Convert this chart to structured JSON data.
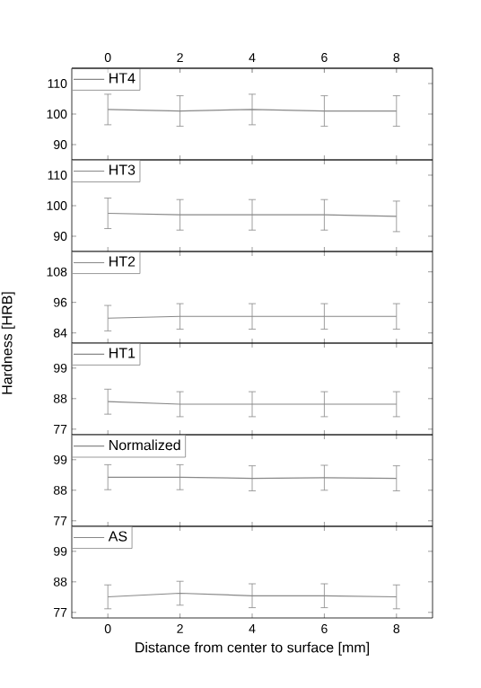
{
  "chart_data": [
    {
      "type": "line",
      "x": [
        0,
        2,
        4,
        6,
        8
      ],
      "xlim": [
        -1,
        9
      ],
      "xticks": [
        0,
        2,
        4,
        6,
        8
      ],
      "x2lim": [
        -1,
        9
      ],
      "x2ticks": [
        0,
        2,
        4,
        6,
        8
      ],
      "ylim": [
        85,
        115
      ],
      "yticks": [
        90,
        100,
        110
      ],
      "tick_labels": "y",
      "legend": "top left",
      "series": [
        {
          "name": "HT4",
          "color": "#888888",
          "values": [
            101.5,
            101,
            101.5,
            101,
            101
          ],
          "errors": [
            5,
            5,
            5,
            5,
            5
          ]
        }
      ]
    },
    {
      "type": "line",
      "x": [
        0,
        2,
        4,
        6,
        8
      ],
      "xlim": [
        -1,
        9
      ],
      "xticks": [
        0,
        2,
        4,
        6,
        8
      ],
      "ylim": [
        85,
        115
      ],
      "yticks": [
        90,
        100,
        110
      ],
      "tick_labels": "y",
      "legend": "top left",
      "series": [
        {
          "name": "HT3",
          "color": "#888888",
          "values": [
            97.5,
            97,
            97,
            97,
            96.5
          ],
          "errors": [
            5,
            5,
            5,
            5,
            5
          ]
        }
      ]
    },
    {
      "type": "line",
      "x": [
        0,
        2,
        4,
        6,
        8
      ],
      "xlim": [
        -1,
        9
      ],
      "xticks": [
        0,
        2,
        4,
        6,
        8
      ],
      "ylim": [
        80,
        116
      ],
      "yticks": [
        84,
        96,
        108
      ],
      "tick_labels": "y",
      "legend": "top left",
      "ylabel": "Hardness [HRB]",
      "series": [
        {
          "name": "HT2",
          "color": "#888888",
          "values": [
            89.8,
            90.5,
            90.5,
            90.5,
            90.5
          ],
          "errors": [
            5,
            5,
            5,
            5,
            5
          ]
        }
      ]
    },
    {
      "type": "line",
      "x": [
        0,
        2,
        4,
        6,
        8
      ],
      "xlim": [
        -1,
        9
      ],
      "xticks": [
        0,
        2,
        4,
        6,
        8
      ],
      "ylim": [
        75,
        108
      ],
      "yticks": [
        77,
        88,
        99
      ],
      "tick_labels": "y",
      "legend": "top left",
      "series": [
        {
          "name": "HT1",
          "color": "#888888",
          "values": [
            86.9,
            86,
            86,
            86,
            86
          ],
          "errors": [
            4.5,
            4.5,
            4.5,
            4.5,
            4.5
          ]
        }
      ]
    },
    {
      "type": "line",
      "x": [
        0,
        2,
        4,
        6,
        8
      ],
      "xlim": [
        -1,
        9
      ],
      "xticks": [
        0,
        2,
        4,
        6,
        8
      ],
      "ylim": [
        75,
        108
      ],
      "yticks": [
        77,
        88,
        99
      ],
      "tick_labels": "y",
      "legend": "top left",
      "series": [
        {
          "name": "Normalized",
          "color": "#888888",
          "values": [
            92.7,
            92.7,
            92.3,
            92.5,
            92.3
          ],
          "errors": [
            4.5,
            4.5,
            4.5,
            4.5,
            4.5
          ]
        }
      ]
    },
    {
      "type": "line",
      "x": [
        0,
        2,
        4,
        6,
        8
      ],
      "xlim": [
        -1,
        9
      ],
      "xticks": [
        0,
        2,
        4,
        6,
        8
      ],
      "ylim": [
        75,
        108
      ],
      "yticks": [
        77,
        88,
        99
      ],
      "legend": "top left",
      "xlabel": "Distance from center to surface [mm]",
      "series": [
        {
          "name": "AS",
          "color": "#888888",
          "values": [
            82.6,
            83.9,
            83,
            83,
            82.6
          ],
          "errors": [
            4.3,
            4.3,
            4.3,
            4.3,
            4.3
          ]
        }
      ]
    }
  ]
}
